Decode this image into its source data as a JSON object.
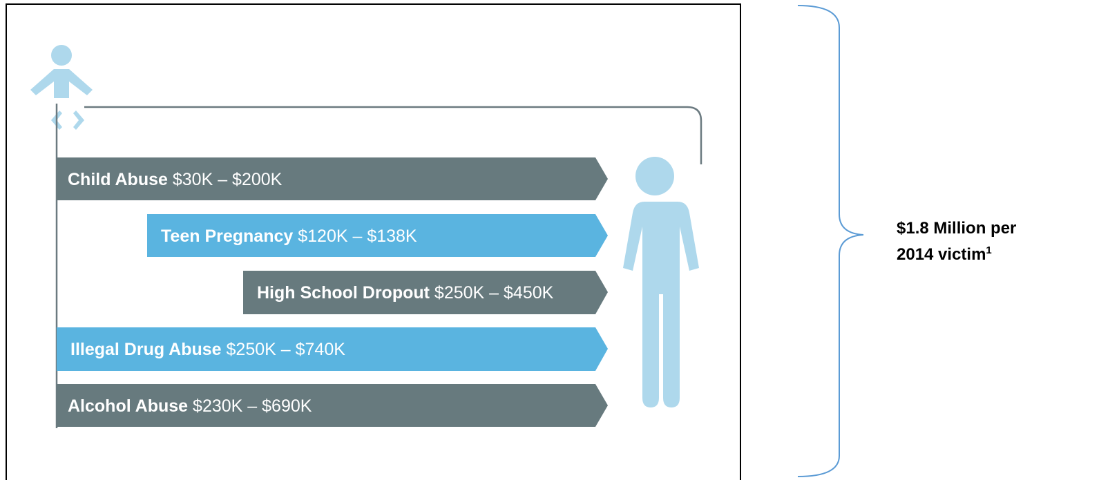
{
  "items": [
    {
      "label": "Child Abuse",
      "range": "$30K – $200K"
    },
    {
      "label": "Teen Pregnancy",
      "range": "$120K – $138K"
    },
    {
      "label": "High School Dropout",
      "range": "$250K – $450K"
    },
    {
      "label": "Illegal Drug Abuse",
      "range": "$250K – $740K"
    },
    {
      "label": "Alcohol Abuse",
      "range": "$230K – $690K"
    }
  ],
  "summary": {
    "line1": "$1.8 Million per",
    "line2": "2014 victim",
    "footnote": "1"
  }
}
